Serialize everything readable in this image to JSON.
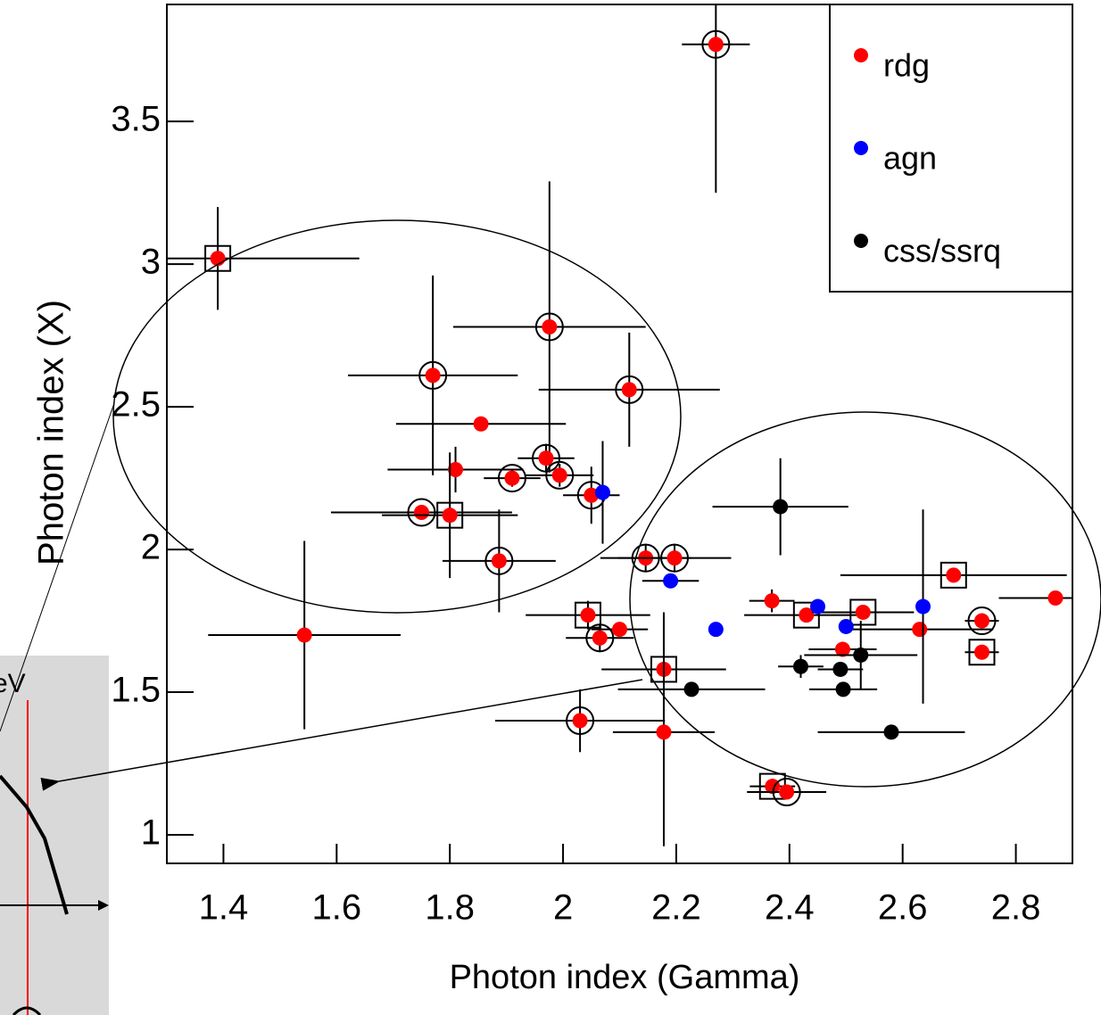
{
  "chart_data": {
    "type": "scatter",
    "xlabel": "Photon index (Gamma)",
    "ylabel": "Photon index (X)",
    "xlim": [
      1.3,
      2.9
    ],
    "xticks": [
      1.4,
      1.6,
      1.8,
      2,
      2.2,
      2.4,
      2.6,
      2.8
    ],
    "ylim": [
      0.9,
      3.91
    ],
    "yticks": [
      1,
      1.5,
      2,
      2.5,
      3,
      3.5
    ],
    "legend": "top-right",
    "series": [
      {
        "name": "rdg",
        "color": "#ff0000",
        "x": [
          2.27,
          1.39,
          1.976,
          1.77,
          2.117,
          1.855,
          1.81,
          1.91,
          1.97,
          1.994,
          2.05,
          1.75,
          1.8,
          1.887,
          1.543,
          2.146,
          2.197,
          2.044,
          2.065,
          2.1,
          2.178,
          2.03,
          2.178,
          2.369,
          2.43,
          2.53,
          2.494,
          2.63,
          2.69,
          2.74,
          2.74,
          2.87,
          2.37,
          2.395
        ],
        "values": [
          3.77,
          3.02,
          2.78,
          2.61,
          2.56,
          2.44,
          2.28,
          2.25,
          2.32,
          2.26,
          2.19,
          2.13,
          2.12,
          1.96,
          1.7,
          1.97,
          1.97,
          1.77,
          1.69,
          1.72,
          1.58,
          1.4,
          1.36,
          1.82,
          1.77,
          1.78,
          1.65,
          1.72,
          1.91,
          1.75,
          1.64,
          1.83,
          1.17,
          1.15
        ],
        "xerr": [
          0.06,
          0.25,
          0.17,
          0.15,
          0.16,
          0.15,
          0.12,
          0.05,
          0.05,
          0.06,
          0.05,
          0.16,
          0.12,
          0.1,
          0.17,
          0.08,
          0.1,
          0.11,
          0.06,
          0.05,
          0.11,
          0.15,
          0.09,
          0.04,
          0.11,
          0.09,
          0.06,
          0.13,
          0.2,
          0.03,
          0.03,
          0.1,
          0.04,
          0.07
        ],
        "yerr": [
          0.52,
          0.18,
          0.51,
          0.35,
          0.2,
          0,
          0.08,
          0.03,
          0.05,
          0.04,
          0.1,
          0,
          0.22,
          0.18,
          0.33,
          0.05,
          0.05,
          0.05,
          0.05,
          0,
          0.2,
          0.11,
          0.4,
          0.04,
          0,
          0,
          0,
          0,
          0,
          0,
          0,
          0,
          0,
          0
        ],
        "markers": [
          "circle",
          "square",
          "circle",
          "circle",
          "circle",
          null,
          null,
          "circle",
          "circle",
          "circle",
          "circle",
          "circle",
          "square",
          "circle",
          null,
          "circle",
          "circle",
          "square",
          "circle",
          null,
          "square",
          "circle",
          null,
          null,
          "square",
          "square",
          null,
          null,
          "square",
          "circle",
          "square",
          null,
          "square",
          "circle"
        ]
      },
      {
        "name": "agn",
        "color": "#0000ff",
        "x": [
          2.07,
          2.19,
          2.27,
          2.45,
          2.5,
          2.636
        ],
        "values": [
          2.2,
          1.89,
          1.72,
          1.8,
          1.73,
          1.8
        ],
        "xerr": [
          0,
          0.05,
          0,
          0,
          0,
          0
        ],
        "yerr": [
          0.18,
          0,
          0,
          0,
          0,
          0.34
        ],
        "markers": [
          null,
          null,
          null,
          null,
          null,
          null
        ]
      },
      {
        "name": "css/ssrq",
        "color": "#000000",
        "x": [
          2.384,
          2.42,
          2.49,
          2.526,
          2.495,
          2.227,
          2.58
        ],
        "values": [
          2.15,
          1.59,
          1.58,
          1.63,
          1.51,
          1.51,
          1.36
        ],
        "xerr": [
          0.12,
          0.04,
          0.04,
          0.1,
          0.06,
          0.13,
          0.13
        ],
        "yerr": [
          0.17,
          0.04,
          0,
          0.12,
          0,
          0,
          0
        ],
        "markers": [
          null,
          null,
          null,
          null,
          null,
          null,
          null
        ]
      }
    ]
  },
  "inset": {
    "label": "eV"
  }
}
